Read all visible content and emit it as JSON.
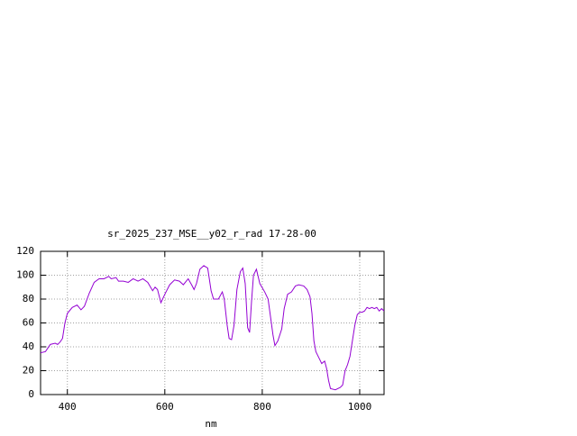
{
  "chart_data": {
    "type": "line",
    "title": "sr_2025_237_MSE__y02_r_rad 17-28-00",
    "xlabel": "nm",
    "x": [
      345,
      355,
      365,
      375,
      380,
      385,
      390,
      395,
      400,
      410,
      420,
      428,
      435,
      445,
      455,
      465,
      475,
      485,
      490,
      500,
      505,
      515,
      525,
      535,
      545,
      555,
      565,
      575,
      580,
      585,
      592,
      600,
      610,
      620,
      630,
      638,
      648,
      655,
      660,
      665,
      672,
      680,
      688,
      695,
      700,
      710,
      718,
      722,
      728,
      732,
      737,
      742,
      748,
      755,
      760,
      765,
      770,
      774,
      778,
      782,
      788,
      795,
      805,
      812,
      818,
      822,
      826,
      832,
      840,
      845,
      852,
      860,
      868,
      875,
      885,
      892,
      898,
      902,
      906,
      910,
      916,
      922,
      928,
      932,
      936,
      940,
      950,
      960,
      965,
      970,
      975,
      980,
      985,
      990,
      995,
      1000,
      1005,
      1010,
      1015,
      1020,
      1025,
      1030,
      1035,
      1040,
      1045,
      1050
    ],
    "series": [
      {
        "name": "sr_2025_237_MSE__y02_r_rad",
        "color": "#9400d3",
        "values": [
          35,
          36,
          42,
          43,
          42,
          44,
          47,
          60,
          68,
          73,
          75,
          71,
          74,
          85,
          94,
          97,
          97,
          99,
          97,
          98,
          95,
          95,
          94,
          97,
          95,
          97,
          94,
          87,
          90,
          88,
          77,
          84,
          92,
          96,
          95,
          92,
          97,
          92,
          88,
          93,
          105,
          108,
          106,
          87,
          80,
          80,
          86,
          80,
          58,
          47,
          46,
          58,
          88,
          103,
          106,
          93,
          56,
          52,
          78,
          100,
          105,
          93,
          86,
          80,
          62,
          50,
          41,
          45,
          55,
          72,
          84,
          86,
          91,
          92,
          91,
          88,
          82,
          68,
          45,
          36,
          31,
          26,
          28,
          22,
          12,
          5,
          4,
          6,
          8,
          20,
          25,
          32,
          45,
          58,
          67,
          69,
          69,
          70,
          73,
          72,
          73,
          72,
          73,
          70,
          72,
          70
        ]
      }
    ],
    "xlim": [
      345,
      1050
    ],
    "xticks": [
      400,
      600,
      800,
      1000
    ],
    "ylim": [
      0,
      120
    ],
    "yticks": [
      0,
      20,
      40,
      60,
      80,
      100,
      120
    ],
    "grid": true
  }
}
